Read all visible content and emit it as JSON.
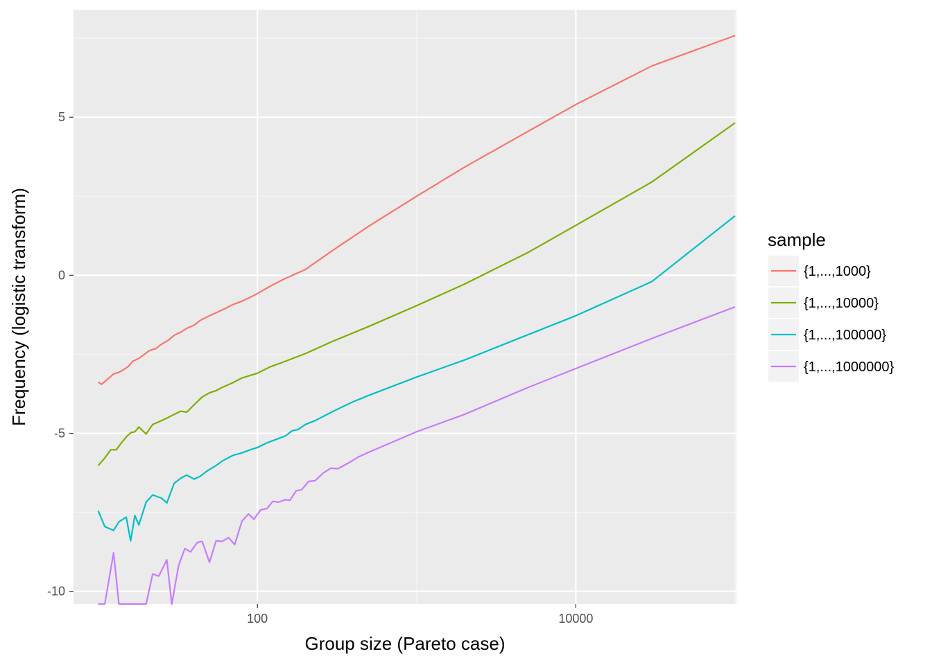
{
  "chart_data": {
    "type": "line",
    "xlabel": "Group size (Pareto case)",
    "ylabel": "Frequency (logistic transform)",
    "x_scale": "log10",
    "xlim": [
      7,
      102000
    ],
    "ylim": [
      -10.4,
      8.4
    ],
    "x_ticks": [
      {
        "value": 100,
        "label": "100"
      },
      {
        "value": 10000,
        "label": "10000"
      }
    ],
    "y_ticks": [
      {
        "value": 5,
        "label": "5"
      },
      {
        "value": 0,
        "label": "0"
      },
      {
        "value": -5,
        "label": "-5"
      },
      {
        "value": -10,
        "label": "-10"
      }
    ],
    "grid": true,
    "legend": {
      "title": "sample",
      "position": "right"
    },
    "series": [
      {
        "name": "{1,...,1000}",
        "color": "#F8766D",
        "points": [
          [
            10,
            -3.38
          ],
          [
            10.5,
            -3.45
          ],
          [
            11.5,
            -3.28
          ],
          [
            12.5,
            -3.12
          ],
          [
            13.5,
            -3.07
          ],
          [
            14.5,
            -2.98
          ],
          [
            15.5,
            -2.88
          ],
          [
            16.5,
            -2.72
          ],
          [
            18,
            -2.63
          ],
          [
            19.5,
            -2.5
          ],
          [
            21,
            -2.38
          ],
          [
            23,
            -2.32
          ],
          [
            25,
            -2.18
          ],
          [
            27.5,
            -2.06
          ],
          [
            30,
            -1.9
          ],
          [
            33,
            -1.8
          ],
          [
            36,
            -1.68
          ],
          [
            40,
            -1.58
          ],
          [
            44,
            -1.42
          ],
          [
            50,
            -1.28
          ],
          [
            60,
            -1.1
          ],
          [
            70,
            -0.93
          ],
          [
            80,
            -0.82
          ],
          [
            90,
            -0.7
          ],
          [
            100,
            -0.58
          ],
          [
            125,
            -0.3
          ],
          [
            150,
            -0.1
          ],
          [
            200,
            0.18
          ],
          [
            300,
            0.8
          ],
          [
            500,
            1.55
          ],
          [
            1000,
            2.5
          ],
          [
            2000,
            3.42
          ],
          [
            5000,
            4.55
          ],
          [
            10000,
            5.4
          ],
          [
            30000,
            6.62
          ],
          [
            100000,
            7.58
          ]
        ]
      },
      {
        "name": "{1,...,10000}",
        "color": "#7CAE00",
        "points": [
          [
            10,
            -6.02
          ],
          [
            11,
            -5.78
          ],
          [
            12,
            -5.52
          ],
          [
            13,
            -5.52
          ],
          [
            14,
            -5.3
          ],
          [
            15,
            -5.12
          ],
          [
            16,
            -4.98
          ],
          [
            17,
            -4.95
          ],
          [
            18,
            -4.8
          ],
          [
            20,
            -5.02
          ],
          [
            22,
            -4.72
          ],
          [
            25,
            -4.6
          ],
          [
            27.5,
            -4.5
          ],
          [
            30,
            -4.4
          ],
          [
            33,
            -4.3
          ],
          [
            36,
            -4.33
          ],
          [
            40,
            -4.1
          ],
          [
            45,
            -3.85
          ],
          [
            50,
            -3.72
          ],
          [
            55,
            -3.65
          ],
          [
            60,
            -3.55
          ],
          [
            70,
            -3.4
          ],
          [
            80,
            -3.25
          ],
          [
            100,
            -3.1
          ],
          [
            120,
            -2.9
          ],
          [
            150,
            -2.72
          ],
          [
            200,
            -2.48
          ],
          [
            300,
            -2.08
          ],
          [
            500,
            -1.62
          ],
          [
            1000,
            -0.96
          ],
          [
            2000,
            -0.28
          ],
          [
            5000,
            0.72
          ],
          [
            10000,
            1.58
          ],
          [
            30000,
            2.95
          ],
          [
            100000,
            4.82
          ]
        ]
      },
      {
        "name": "{1,...,100000}",
        "color": "#00BFC4",
        "points": [
          [
            10,
            -7.45
          ],
          [
            11,
            -7.95
          ],
          [
            12.5,
            -8.07
          ],
          [
            13.5,
            -7.8
          ],
          [
            15,
            -7.65
          ],
          [
            16,
            -8.4
          ],
          [
            17,
            -7.6
          ],
          [
            18,
            -7.9
          ],
          [
            20,
            -7.18
          ],
          [
            22,
            -6.95
          ],
          [
            25,
            -7.05
          ],
          [
            27,
            -7.2
          ],
          [
            30,
            -6.58
          ],
          [
            33,
            -6.42
          ],
          [
            36,
            -6.32
          ],
          [
            40,
            -6.45
          ],
          [
            44,
            -6.35
          ],
          [
            48,
            -6.2
          ],
          [
            55,
            -6.02
          ],
          [
            60,
            -5.88
          ],
          [
            70,
            -5.7
          ],
          [
            80,
            -5.62
          ],
          [
            90,
            -5.52
          ],
          [
            100,
            -5.45
          ],
          [
            115,
            -5.3
          ],
          [
            130,
            -5.2
          ],
          [
            150,
            -5.08
          ],
          [
            165,
            -4.92
          ],
          [
            180,
            -4.88
          ],
          [
            200,
            -4.72
          ],
          [
            230,
            -4.6
          ],
          [
            300,
            -4.3
          ],
          [
            400,
            -4.0
          ],
          [
            500,
            -3.8
          ],
          [
            1000,
            -3.22
          ],
          [
            2000,
            -2.68
          ],
          [
            5000,
            -1.88
          ],
          [
            10000,
            -1.28
          ],
          [
            30000,
            -0.2
          ],
          [
            100000,
            1.88
          ]
        ]
      },
      {
        "name": "{1,...,1000000}",
        "color": "#C77CFF",
        "points": [
          [
            10,
            -10.4
          ],
          [
            11,
            -10.4
          ],
          [
            12.5,
            -8.78
          ],
          [
            13.5,
            -10.4
          ],
          [
            15,
            -10.4
          ],
          [
            17,
            -10.4
          ],
          [
            19,
            -10.4
          ],
          [
            20,
            -10.4
          ],
          [
            22,
            -9.45
          ],
          [
            24,
            -9.52
          ],
          [
            27,
            -9.0
          ],
          [
            29,
            -10.4
          ],
          [
            32,
            -9.18
          ],
          [
            35,
            -8.65
          ],
          [
            38,
            -8.75
          ],
          [
            42,
            -8.45
          ],
          [
            45,
            -8.42
          ],
          [
            50,
            -9.08
          ],
          [
            55,
            -8.4
          ],
          [
            60,
            -8.42
          ],
          [
            66,
            -8.3
          ],
          [
            72,
            -8.52
          ],
          [
            80,
            -7.78
          ],
          [
            88,
            -7.55
          ],
          [
            95,
            -7.72
          ],
          [
            105,
            -7.42
          ],
          [
            115,
            -7.38
          ],
          [
            125,
            -7.15
          ],
          [
            135,
            -7.18
          ],
          [
            150,
            -7.1
          ],
          [
            160,
            -7.12
          ],
          [
            175,
            -6.82
          ],
          [
            190,
            -6.78
          ],
          [
            210,
            -6.52
          ],
          [
            230,
            -6.5
          ],
          [
            260,
            -6.25
          ],
          [
            290,
            -6.1
          ],
          [
            320,
            -6.12
          ],
          [
            370,
            -5.95
          ],
          [
            430,
            -5.75
          ],
          [
            500,
            -5.6
          ],
          [
            1000,
            -4.95
          ],
          [
            2000,
            -4.4
          ],
          [
            5000,
            -3.55
          ],
          [
            10000,
            -2.95
          ],
          [
            30000,
            -2.0
          ],
          [
            100000,
            -1.0
          ]
        ]
      }
    ]
  }
}
